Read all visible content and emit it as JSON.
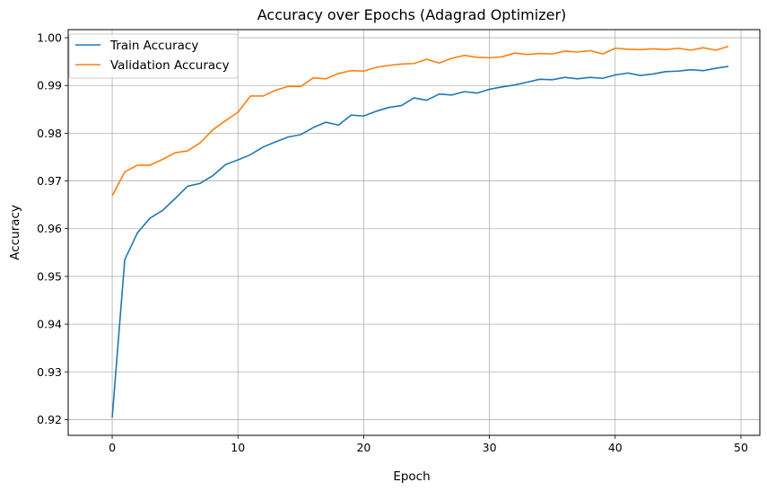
{
  "chart_data": {
    "type": "line",
    "title": "Accuracy over Epochs (Adagrad Optimizer)",
    "xlabel": "Epoch",
    "ylabel": "Accuracy",
    "xlim": [
      -3.5,
      51.5
    ],
    "ylim": [
      0.9167,
      1.0017
    ],
    "xticks": [
      0,
      10,
      20,
      30,
      40,
      50
    ],
    "yticks": [
      0.92,
      0.93,
      0.94,
      0.95,
      0.96,
      0.97,
      0.98,
      0.99,
      1.0
    ],
    "ytick_labels": [
      "0.92",
      "0.93",
      "0.94",
      "0.95",
      "0.96",
      "0.97",
      "0.98",
      "0.99",
      "1.00"
    ],
    "grid": true,
    "legend_position": "top-left",
    "x": [
      0,
      1,
      2,
      3,
      4,
      5,
      6,
      7,
      8,
      9,
      10,
      11,
      12,
      13,
      14,
      15,
      16,
      17,
      18,
      19,
      20,
      21,
      22,
      23,
      24,
      25,
      26,
      27,
      28,
      29,
      30,
      31,
      32,
      33,
      34,
      35,
      36,
      37,
      38,
      39,
      40,
      41,
      42,
      43,
      44,
      45,
      46,
      47,
      48,
      49
    ],
    "series": [
      {
        "name": "Train Accuracy",
        "color": "#1f77b4",
        "values": [
          0.9204,
          0.9535,
          0.9591,
          0.9622,
          0.9638,
          0.9663,
          0.9689,
          0.9695,
          0.9711,
          0.9734,
          0.9744,
          0.9755,
          0.9771,
          0.9782,
          0.9792,
          0.9797,
          0.9812,
          0.9823,
          0.9817,
          0.9838,
          0.9836,
          0.9846,
          0.9854,
          0.9858,
          0.9874,
          0.9869,
          0.9882,
          0.988,
          0.9887,
          0.9884,
          0.9892,
          0.9897,
          0.9901,
          0.9907,
          0.9913,
          0.9912,
          0.9917,
          0.9914,
          0.9917,
          0.9915,
          0.9922,
          0.9926,
          0.9921,
          0.9924,
          0.9929,
          0.993,
          0.9933,
          0.9931,
          0.9936,
          0.994
        ]
      },
      {
        "name": "Validation Accuracy",
        "color": "#ff7f0e",
        "values": [
          0.9669,
          0.9719,
          0.9733,
          0.9733,
          0.9745,
          0.9759,
          0.9763,
          0.978,
          0.9807,
          0.9826,
          0.9844,
          0.9878,
          0.9878,
          0.989,
          0.9898,
          0.9898,
          0.9916,
          0.9914,
          0.9925,
          0.9931,
          0.993,
          0.9938,
          0.9942,
          0.9945,
          0.9946,
          0.9955,
          0.9947,
          0.9957,
          0.9963,
          0.9959,
          0.9958,
          0.996,
          0.9968,
          0.9965,
          0.9967,
          0.9966,
          0.9972,
          0.997,
          0.9973,
          0.9966,
          0.9978,
          0.9976,
          0.9975,
          0.9977,
          0.9975,
          0.9978,
          0.9974,
          0.9979,
          0.9974,
          0.9982
        ]
      }
    ]
  }
}
